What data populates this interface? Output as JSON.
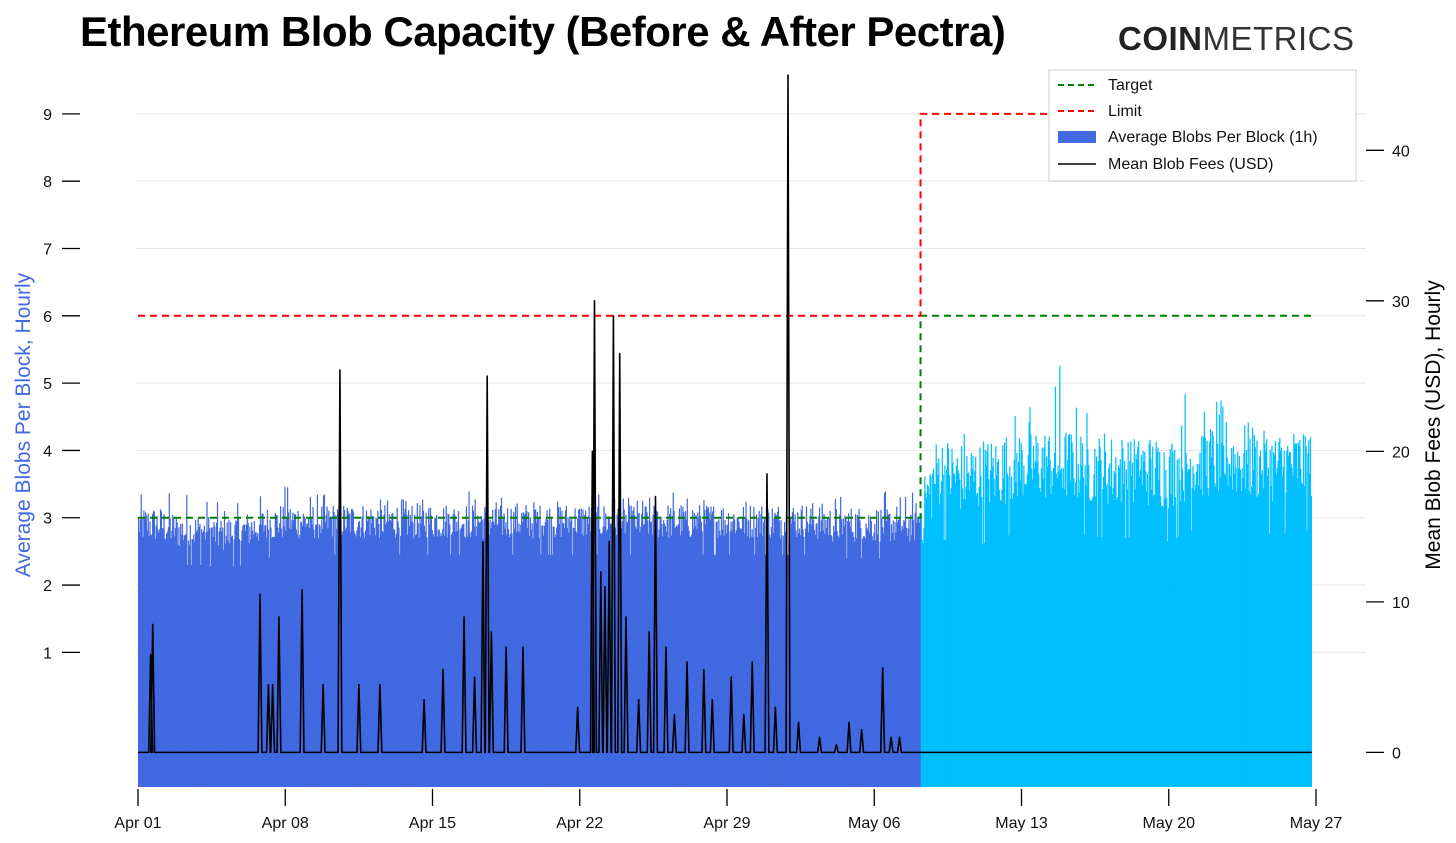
{
  "title": "Ethereum Blob Capacity (Before & After Pectra)",
  "brand": {
    "bold": "COIN",
    "light": "METRICS"
  },
  "colors": {
    "bars_before": "#4169e1",
    "bars_after": "#00bfff",
    "target": "#008000",
    "limit": "#ff0000",
    "fees": "#000000",
    "left_axis_label": "#4169e1",
    "right_axis_label": "#000000",
    "grid": "#e6e6e6"
  },
  "chart_data": {
    "type": "bar+line",
    "title": "Ethereum Blob Capacity (Before & After Pectra)",
    "xlabel": "",
    "ylabel_left": "Average Blobs Per Block, Hourly",
    "ylabel_right": "Mean Blob Fees (USD), Hourly",
    "x_ticks": [
      "Apr 01",
      "Apr 08",
      "Apr 15",
      "Apr 22",
      "Apr 29",
      "May 06",
      "May 13",
      "May 20",
      "May 27"
    ],
    "x_range_days": [
      0,
      56
    ],
    "ylim_left": [
      -1,
      9.8
    ],
    "y_ticks_left": [
      1,
      2,
      3,
      4,
      5,
      6,
      7,
      8,
      9
    ],
    "ylim_right": [
      -2.3,
      46
    ],
    "y_ticks_right": [
      0,
      10,
      20,
      30,
      40
    ],
    "pectra_day": 37.2,
    "target": {
      "name": "Target",
      "segments": [
        [
          0,
          37.2,
          3
        ],
        [
          37.2,
          55.8,
          6
        ]
      ]
    },
    "limit": {
      "name": "Limit",
      "segments": [
        [
          0,
          37.2,
          6
        ],
        [
          37.2,
          55.8,
          9
        ]
      ]
    },
    "blobs_series": {
      "name": "Average Blobs Per Block (1h)",
      "hourly_sampled_daily": [
        {
          "day": 0,
          "avg": 2.9,
          "max": 3.4
        },
        {
          "day": 1,
          "avg": 2.9,
          "max": 3.5
        },
        {
          "day": 2,
          "avg": 2.8,
          "max": 3.5
        },
        {
          "day": 3,
          "avg": 2.8,
          "max": 3.5
        },
        {
          "day": 4,
          "avg": 2.75,
          "max": 3.3
        },
        {
          "day": 5,
          "avg": 2.8,
          "max": 3.3
        },
        {
          "day": 6,
          "avg": 2.9,
          "max": 3.4
        },
        {
          "day": 7,
          "avg": 2.95,
          "max": 3.7
        },
        {
          "day": 8,
          "avg": 2.95,
          "max": 3.3
        },
        {
          "day": 9,
          "avg": 2.95,
          "max": 3.4
        },
        {
          "day": 10,
          "avg": 2.95,
          "max": 3.5
        },
        {
          "day": 11,
          "avg": 2.95,
          "max": 3.3
        },
        {
          "day": 12,
          "avg": 2.95,
          "max": 3.3
        },
        {
          "day": 13,
          "avg": 2.95,
          "max": 3.3
        },
        {
          "day": 14,
          "avg": 2.95,
          "max": 3.3
        },
        {
          "day": 15,
          "avg": 2.95,
          "max": 3.5
        },
        {
          "day": 16,
          "avg": 2.95,
          "max": 3.4
        },
        {
          "day": 17,
          "avg": 2.95,
          "max": 3.3
        },
        {
          "day": 18,
          "avg": 2.95,
          "max": 3.3
        },
        {
          "day": 19,
          "avg": 2.95,
          "max": 3.3
        },
        {
          "day": 20,
          "avg": 2.95,
          "max": 3.3
        },
        {
          "day": 21,
          "avg": 2.95,
          "max": 3.3
        },
        {
          "day": 22,
          "avg": 2.95,
          "max": 3.4
        },
        {
          "day": 23,
          "avg": 2.95,
          "max": 3.3
        },
        {
          "day": 24,
          "avg": 2.95,
          "max": 3.3
        },
        {
          "day": 25,
          "avg": 2.95,
          "max": 3.5
        },
        {
          "day": 26,
          "avg": 2.95,
          "max": 3.3
        },
        {
          "day": 27,
          "avg": 2.95,
          "max": 3.3
        },
        {
          "day": 28,
          "avg": 2.95,
          "max": 3.3
        },
        {
          "day": 29,
          "avg": 2.95,
          "max": 3.3
        },
        {
          "day": 30,
          "avg": 2.95,
          "max": 3.3
        },
        {
          "day": 31,
          "avg": 2.95,
          "max": 3.3
        },
        {
          "day": 32,
          "avg": 2.95,
          "max": 3.3
        },
        {
          "day": 33,
          "avg": 2.9,
          "max": 3.3
        },
        {
          "day": 34,
          "avg": 2.9,
          "max": 3.4
        },
        {
          "day": 35,
          "avg": 2.9,
          "max": 3.5
        },
        {
          "day": 36,
          "avg": 2.9,
          "max": 3.3
        },
        {
          "day": 37,
          "avg": 2.9,
          "max": 3.4
        },
        {
          "day": 38,
          "avg": 3.7,
          "max": 4.5
        },
        {
          "day": 39,
          "avg": 3.6,
          "max": 4.4
        },
        {
          "day": 40,
          "avg": 3.6,
          "max": 4.3
        },
        {
          "day": 41,
          "avg": 3.7,
          "max": 4.4
        },
        {
          "day": 42,
          "avg": 3.8,
          "max": 4.7
        },
        {
          "day": 43,
          "avg": 3.8,
          "max": 4.6
        },
        {
          "day": 44,
          "avg": 3.8,
          "max": 5.6
        },
        {
          "day": 45,
          "avg": 3.75,
          "max": 4.6
        },
        {
          "day": 46,
          "avg": 3.7,
          "max": 4.3
        },
        {
          "day": 47,
          "avg": 3.7,
          "max": 4.3
        },
        {
          "day": 48,
          "avg": 3.7,
          "max": 4.4
        },
        {
          "day": 49,
          "avg": 3.65,
          "max": 4.3
        },
        {
          "day": 50,
          "avg": 3.8,
          "max": 5.1
        },
        {
          "day": 51,
          "avg": 3.85,
          "max": 4.8
        },
        {
          "day": 52,
          "avg": 3.85,
          "max": 4.7
        },
        {
          "day": 53,
          "avg": 3.8,
          "max": 4.6
        },
        {
          "day": 54,
          "avg": 3.75,
          "max": 4.5
        },
        {
          "day": 55,
          "avg": 3.8,
          "max": 4.3
        },
        {
          "day": 55.8,
          "avg": 3.8,
          "max": 4.3
        }
      ]
    },
    "fees_series": {
      "name": "Mean Blob Fees (USD)",
      "baseline": 0,
      "spikes": [
        {
          "day": 0.6,
          "value": 6.5
        },
        {
          "day": 0.7,
          "value": 8.5
        },
        {
          "day": 5.8,
          "value": 10.5
        },
        {
          "day": 6.2,
          "value": 4.5
        },
        {
          "day": 6.4,
          "value": 4.5
        },
        {
          "day": 6.7,
          "value": 9.0
        },
        {
          "day": 7.8,
          "value": 10.8
        },
        {
          "day": 8.8,
          "value": 4.5
        },
        {
          "day": 9.6,
          "value": 25.4
        },
        {
          "day": 10.5,
          "value": 4.5
        },
        {
          "day": 11.5,
          "value": 4.5
        },
        {
          "day": 13.6,
          "value": 3.5
        },
        {
          "day": 14.5,
          "value": 5.5
        },
        {
          "day": 15.5,
          "value": 9.0
        },
        {
          "day": 16.0,
          "value": 5.0
        },
        {
          "day": 16.4,
          "value": 14.0
        },
        {
          "day": 16.6,
          "value": 25.0
        },
        {
          "day": 16.8,
          "value": 8.0
        },
        {
          "day": 17.5,
          "value": 7.0
        },
        {
          "day": 18.3,
          "value": 7.0
        },
        {
          "day": 20.9,
          "value": 3.0
        },
        {
          "day": 21.6,
          "value": 20.0
        },
        {
          "day": 21.7,
          "value": 30.0
        },
        {
          "day": 22.0,
          "value": 12.0
        },
        {
          "day": 22.2,
          "value": 11.0
        },
        {
          "day": 22.4,
          "value": 14.0
        },
        {
          "day": 22.6,
          "value": 29.0
        },
        {
          "day": 22.9,
          "value": 26.5
        },
        {
          "day": 23.2,
          "value": 9.0
        },
        {
          "day": 23.8,
          "value": 3.5
        },
        {
          "day": 24.3,
          "value": 8.0
        },
        {
          "day": 24.6,
          "value": 17.0
        },
        {
          "day": 25.1,
          "value": 7.0
        },
        {
          "day": 25.5,
          "value": 2.5
        },
        {
          "day": 26.1,
          "value": 6.0
        },
        {
          "day": 26.9,
          "value": 5.5
        },
        {
          "day": 27.3,
          "value": 3.5
        },
        {
          "day": 28.2,
          "value": 5.0
        },
        {
          "day": 28.8,
          "value": 2.5
        },
        {
          "day": 29.2,
          "value": 6.0
        },
        {
          "day": 29.9,
          "value": 18.5
        },
        {
          "day": 30.3,
          "value": 3.0
        },
        {
          "day": 30.9,
          "value": 45.0
        },
        {
          "day": 31.4,
          "value": 2.0
        },
        {
          "day": 32.4,
          "value": 1.0
        },
        {
          "day": 33.2,
          "value": 0.5
        },
        {
          "day": 33.8,
          "value": 2.0
        },
        {
          "day": 34.4,
          "value": 1.5
        },
        {
          "day": 35.4,
          "value": 5.6
        },
        {
          "day": 35.8,
          "value": 1.0
        },
        {
          "day": 36.2,
          "value": 1.0
        }
      ]
    },
    "legend": [
      "Target",
      "Limit",
      "Average Blobs Per Block (1h)",
      "Mean Blob Fees (USD)"
    ],
    "legend_position": "top-right"
  }
}
